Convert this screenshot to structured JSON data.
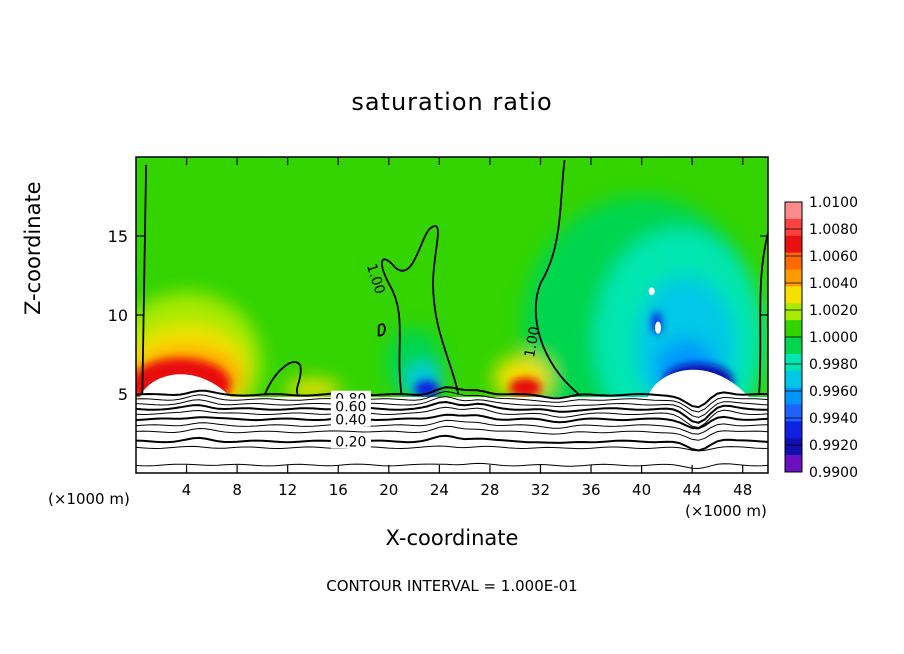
{
  "chart_data": {
    "type": "heatmap",
    "title": "saturation ratio",
    "xlabel": "X-coordinate",
    "ylabel": "Z-coordinate",
    "x_unit_left": "(×1000 m)",
    "x_unit_right": "(×1000 m)",
    "footnote": "CONTOUR INTERVAL = 1.000E-01",
    "xlim": [
      0,
      50
    ],
    "ylim": [
      0,
      20
    ],
    "x_ticks": [
      "4",
      "8",
      "12",
      "16",
      "20",
      "24",
      "28",
      "32",
      "36",
      "40",
      "44",
      "48"
    ],
    "y_ticks": [
      "5",
      "10",
      "15"
    ],
    "colorbar": {
      "range": [
        0.99,
        1.01
      ],
      "labels": [
        "1.0100",
        "1.0080",
        "1.0060",
        "1.0040",
        "1.0020",
        "1.0000",
        "0.9980",
        "0.9960",
        "0.9940",
        "0.9920",
        "0.9900"
      ],
      "colors": [
        "#ff8a8a",
        "#ff4040",
        "#e81010",
        "#ff6a00",
        "#ff9a00",
        "#f5e000",
        "#a8ea00",
        "#33d400",
        "#00d64e",
        "#00e6b0",
        "#00c8e6",
        "#0096ff",
        "#2060ff",
        "#1020e0",
        "#1010b0",
        "#6a10c0"
      ]
    },
    "contour_labels": [
      {
        "text": "1.00",
        "x": 19.0,
        "z": 12.3
      },
      {
        "text": "1.00",
        "x": 31.3,
        "z": 8.3
      },
      {
        "text": "0.80",
        "x": 17.0,
        "z": 4.7
      },
      {
        "text": "0.60",
        "x": 17.0,
        "z": 4.2
      },
      {
        "text": "0.40",
        "x": 17.0,
        "z": 3.4
      },
      {
        "text": "0.20",
        "x": 17.0,
        "z": 2.0
      }
    ]
  }
}
